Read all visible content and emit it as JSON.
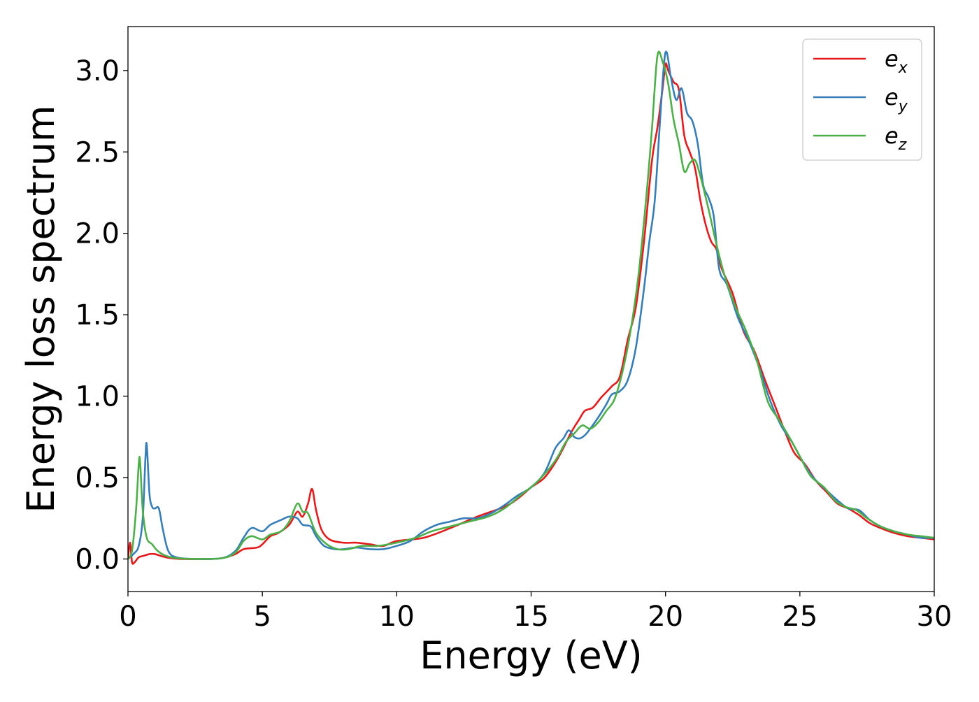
{
  "chart_data": {
    "type": "line",
    "title": "",
    "xlabel": "Energy (eV)",
    "ylabel": "Energy loss spectrum",
    "xlim": [
      0,
      30
    ],
    "ylim": [
      -0.2,
      3.27
    ],
    "xticks": [
      0,
      5,
      10,
      15,
      20,
      25,
      30
    ],
    "xtick_labels": [
      "0",
      "5",
      "10",
      "15",
      "20",
      "25",
      "30"
    ],
    "yticks": [
      0.0,
      0.5,
      1.0,
      1.5,
      2.0,
      2.5,
      3.0
    ],
    "ytick_labels": [
      "0.0",
      "0.5",
      "1.0",
      "1.5",
      "2.0",
      "2.5",
      "3.0"
    ],
    "grid": false,
    "legend_position": "top-right",
    "series": [
      {
        "name": "e_x",
        "legend_base": "e",
        "legend_sub": "x",
        "color": "#e41a1c",
        "points": [
          [
            0.0,
            0.0
          ],
          [
            0.08,
            0.1
          ],
          [
            0.15,
            -0.02
          ],
          [
            0.25,
            -0.02
          ],
          [
            0.4,
            0.01
          ],
          [
            0.6,
            0.02
          ],
          [
            0.8,
            0.03
          ],
          [
            1.0,
            0.03
          ],
          [
            1.3,
            0.015
          ],
          [
            1.6,
            0.005
          ],
          [
            2.0,
            0.0
          ],
          [
            3.0,
            0.0
          ],
          [
            3.5,
            0.005
          ],
          [
            4.0,
            0.03
          ],
          [
            4.3,
            0.06
          ],
          [
            4.8,
            0.07
          ],
          [
            5.0,
            0.09
          ],
          [
            5.3,
            0.14
          ],
          [
            5.6,
            0.16
          ],
          [
            6.0,
            0.21
          ],
          [
            6.3,
            0.29
          ],
          [
            6.5,
            0.26
          ],
          [
            6.7,
            0.34
          ],
          [
            6.85,
            0.43
          ],
          [
            7.0,
            0.3
          ],
          [
            7.2,
            0.18
          ],
          [
            7.5,
            0.12
          ],
          [
            8.0,
            0.1
          ],
          [
            8.5,
            0.1
          ],
          [
            9.0,
            0.09
          ],
          [
            9.5,
            0.08
          ],
          [
            10.0,
            0.11
          ],
          [
            11.0,
            0.13
          ],
          [
            12.0,
            0.19
          ],
          [
            13.0,
            0.26
          ],
          [
            14.0,
            0.32
          ],
          [
            14.5,
            0.37
          ],
          [
            15.0,
            0.44
          ],
          [
            15.5,
            0.5
          ],
          [
            16.0,
            0.62
          ],
          [
            16.5,
            0.78
          ],
          [
            16.8,
            0.86
          ],
          [
            17.0,
            0.91
          ],
          [
            17.3,
            0.93
          ],
          [
            17.6,
            0.99
          ],
          [
            18.0,
            1.06
          ],
          [
            18.3,
            1.12
          ],
          [
            18.6,
            1.35
          ],
          [
            18.9,
            1.55
          ],
          [
            19.2,
            1.95
          ],
          [
            19.5,
            2.45
          ],
          [
            19.7,
            2.65
          ],
          [
            19.9,
            2.9
          ],
          [
            20.0,
            3.04
          ],
          [
            20.1,
            3.0
          ],
          [
            20.3,
            2.93
          ],
          [
            20.5,
            2.88
          ],
          [
            20.7,
            2.6
          ],
          [
            20.9,
            2.5
          ],
          [
            21.1,
            2.4
          ],
          [
            21.3,
            2.2
          ],
          [
            21.5,
            2.05
          ],
          [
            21.7,
            1.95
          ],
          [
            21.9,
            1.9
          ],
          [
            22.1,
            1.78
          ],
          [
            22.5,
            1.63
          ],
          [
            22.9,
            1.4
          ],
          [
            23.3,
            1.28
          ],
          [
            23.7,
            1.1
          ],
          [
            24.1,
            0.93
          ],
          [
            24.5,
            0.76
          ],
          [
            24.8,
            0.65
          ],
          [
            25.2,
            0.58
          ],
          [
            25.6,
            0.48
          ],
          [
            26.0,
            0.41
          ],
          [
            26.4,
            0.34
          ],
          [
            26.8,
            0.31
          ],
          [
            27.2,
            0.27
          ],
          [
            27.6,
            0.22
          ],
          [
            28.0,
            0.19
          ],
          [
            28.5,
            0.16
          ],
          [
            29.0,
            0.14
          ],
          [
            29.5,
            0.13
          ],
          [
            30.0,
            0.12
          ]
        ]
      },
      {
        "name": "e_y",
        "legend_base": "e",
        "legend_sub": "y",
        "color": "#377eb8",
        "points": [
          [
            0.0,
            0.0
          ],
          [
            0.2,
            0.03
          ],
          [
            0.4,
            0.08
          ],
          [
            0.55,
            0.25
          ],
          [
            0.65,
            0.62
          ],
          [
            0.7,
            0.7
          ],
          [
            0.8,
            0.4
          ],
          [
            0.9,
            0.32
          ],
          [
            1.0,
            0.31
          ],
          [
            1.15,
            0.31
          ],
          [
            1.3,
            0.18
          ],
          [
            1.5,
            0.05
          ],
          [
            1.8,
            0.01
          ],
          [
            2.5,
            0.0
          ],
          [
            3.5,
            0.005
          ],
          [
            4.0,
            0.05
          ],
          [
            4.3,
            0.13
          ],
          [
            4.6,
            0.19
          ],
          [
            5.0,
            0.17
          ],
          [
            5.3,
            0.21
          ],
          [
            5.7,
            0.24
          ],
          [
            6.0,
            0.26
          ],
          [
            6.3,
            0.25
          ],
          [
            6.5,
            0.21
          ],
          [
            6.8,
            0.2
          ],
          [
            7.0,
            0.14
          ],
          [
            7.3,
            0.08
          ],
          [
            7.7,
            0.06
          ],
          [
            8.0,
            0.06
          ],
          [
            8.5,
            0.07
          ],
          [
            9.0,
            0.06
          ],
          [
            9.5,
            0.06
          ],
          [
            10.0,
            0.08
          ],
          [
            10.5,
            0.11
          ],
          [
            11.0,
            0.17
          ],
          [
            11.5,
            0.21
          ],
          [
            12.0,
            0.23
          ],
          [
            12.5,
            0.25
          ],
          [
            13.0,
            0.25
          ],
          [
            13.5,
            0.28
          ],
          [
            14.0,
            0.33
          ],
          [
            14.5,
            0.39
          ],
          [
            15.0,
            0.44
          ],
          [
            15.5,
            0.53
          ],
          [
            15.9,
            0.68
          ],
          [
            16.2,
            0.74
          ],
          [
            16.4,
            0.79
          ],
          [
            16.6,
            0.75
          ],
          [
            16.8,
            0.74
          ],
          [
            17.0,
            0.76
          ],
          [
            17.2,
            0.8
          ],
          [
            17.5,
            0.87
          ],
          [
            17.8,
            0.95
          ],
          [
            18.0,
            1.01
          ],
          [
            18.3,
            1.03
          ],
          [
            18.6,
            1.1
          ],
          [
            18.9,
            1.3
          ],
          [
            19.2,
            1.66
          ],
          [
            19.4,
            1.95
          ],
          [
            19.6,
            2.2
          ],
          [
            19.8,
            2.7
          ],
          [
            19.95,
            3.05
          ],
          [
            20.05,
            3.11
          ],
          [
            20.2,
            2.96
          ],
          [
            20.4,
            2.82
          ],
          [
            20.6,
            2.89
          ],
          [
            20.8,
            2.74
          ],
          [
            21.0,
            2.69
          ],
          [
            21.2,
            2.55
          ],
          [
            21.4,
            2.3
          ],
          [
            21.6,
            2.22
          ],
          [
            21.8,
            2.1
          ],
          [
            22.0,
            1.78
          ],
          [
            22.3,
            1.68
          ],
          [
            22.7,
            1.48
          ],
          [
            23.1,
            1.34
          ],
          [
            23.5,
            1.17
          ],
          [
            23.9,
            0.97
          ],
          [
            24.3,
            0.82
          ],
          [
            24.7,
            0.72
          ],
          [
            25.1,
            0.6
          ],
          [
            25.5,
            0.5
          ],
          [
            26.0,
            0.42
          ],
          [
            26.4,
            0.36
          ],
          [
            26.8,
            0.31
          ],
          [
            27.2,
            0.3
          ],
          [
            27.6,
            0.24
          ],
          [
            28.0,
            0.2
          ],
          [
            28.5,
            0.17
          ],
          [
            29.0,
            0.15
          ],
          [
            29.5,
            0.13
          ],
          [
            30.0,
            0.13
          ]
        ]
      },
      {
        "name": "e_z",
        "legend_base": "e",
        "legend_sub": "z",
        "color": "#4daf4a",
        "points": [
          [
            0.0,
            0.0
          ],
          [
            0.15,
            0.05
          ],
          [
            0.3,
            0.3
          ],
          [
            0.4,
            0.58
          ],
          [
            0.45,
            0.6
          ],
          [
            0.55,
            0.3
          ],
          [
            0.7,
            0.13
          ],
          [
            0.9,
            0.09
          ],
          [
            1.1,
            0.05
          ],
          [
            1.4,
            0.02
          ],
          [
            1.8,
            0.005
          ],
          [
            2.5,
            0.0
          ],
          [
            3.5,
            0.005
          ],
          [
            4.0,
            0.04
          ],
          [
            4.3,
            0.11
          ],
          [
            4.6,
            0.14
          ],
          [
            5.0,
            0.12
          ],
          [
            5.3,
            0.15
          ],
          [
            5.7,
            0.17
          ],
          [
            6.0,
            0.23
          ],
          [
            6.3,
            0.34
          ],
          [
            6.5,
            0.29
          ],
          [
            6.7,
            0.28
          ],
          [
            7.0,
            0.16
          ],
          [
            7.4,
            0.09
          ],
          [
            7.8,
            0.06
          ],
          [
            8.2,
            0.06
          ],
          [
            8.7,
            0.08
          ],
          [
            9.3,
            0.08
          ],
          [
            10.0,
            0.1
          ],
          [
            10.7,
            0.13
          ],
          [
            11.3,
            0.17
          ],
          [
            12.0,
            0.2
          ],
          [
            12.7,
            0.23
          ],
          [
            13.4,
            0.26
          ],
          [
            14.0,
            0.31
          ],
          [
            14.6,
            0.39
          ],
          [
            15.2,
            0.47
          ],
          [
            15.7,
            0.56
          ],
          [
            16.0,
            0.63
          ],
          [
            16.3,
            0.72
          ],
          [
            16.6,
            0.77
          ],
          [
            16.9,
            0.82
          ],
          [
            17.2,
            0.8
          ],
          [
            17.5,
            0.84
          ],
          [
            17.8,
            0.91
          ],
          [
            18.1,
            0.98
          ],
          [
            18.4,
            1.15
          ],
          [
            18.7,
            1.4
          ],
          [
            19.0,
            1.75
          ],
          [
            19.3,
            2.25
          ],
          [
            19.5,
            2.65
          ],
          [
            19.7,
            3.09
          ],
          [
            19.9,
            3.05
          ],
          [
            20.1,
            2.92
          ],
          [
            20.3,
            2.7
          ],
          [
            20.5,
            2.55
          ],
          [
            20.7,
            2.38
          ],
          [
            20.9,
            2.43
          ],
          [
            21.1,
            2.45
          ],
          [
            21.3,
            2.35
          ],
          [
            21.6,
            2.15
          ],
          [
            21.9,
            1.93
          ],
          [
            22.2,
            1.74
          ],
          [
            22.6,
            1.55
          ],
          [
            23.0,
            1.4
          ],
          [
            23.4,
            1.22
          ],
          [
            23.8,
            0.97
          ],
          [
            24.2,
            0.86
          ],
          [
            24.6,
            0.75
          ],
          [
            25.0,
            0.63
          ],
          [
            25.4,
            0.51
          ],
          [
            25.9,
            0.44
          ],
          [
            26.3,
            0.36
          ],
          [
            26.7,
            0.32
          ],
          [
            27.1,
            0.3
          ],
          [
            27.5,
            0.25
          ],
          [
            28.0,
            0.2
          ],
          [
            28.5,
            0.17
          ],
          [
            29.0,
            0.15
          ],
          [
            29.5,
            0.14
          ],
          [
            30.0,
            0.13
          ]
        ]
      }
    ]
  }
}
